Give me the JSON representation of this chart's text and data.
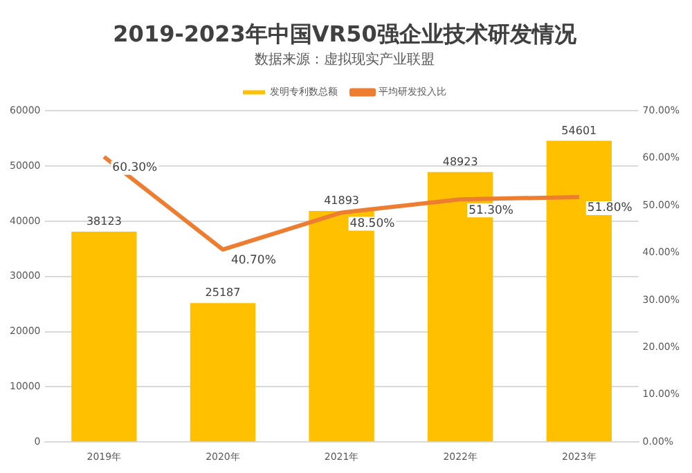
{
  "chart_data": {
    "type": "bar",
    "title": "2019-2023年中国VR50强企业技术研发情况",
    "annotations": [
      "数据来源：虚拟现实产业联盟"
    ],
    "categories": [
      "2019年",
      "2020年",
      "2021年",
      "2022年",
      "2023年"
    ],
    "series": [
      {
        "name": "发明专利数总额",
        "color": "#ffc000",
        "values": [
          38123,
          25187,
          41893,
          48923,
          54601
        ],
        "value_labels": [
          "38123",
          "25187",
          "41893",
          "48923",
          "54601"
        ]
      },
      {
        "name": "平均研发投入比",
        "type": "line",
        "axis": "y2",
        "color": "#ed7d31",
        "values": [
          60.3,
          40.7,
          48.5,
          51.3,
          51.8
        ],
        "value_labels": [
          "60.30%",
          "40.70%",
          "48.50%",
          "51.30%",
          "51.80%"
        ]
      }
    ],
    "ylim": [
      0,
      60000
    ],
    "yticks": [
      0,
      10000,
      20000,
      30000,
      40000,
      50000,
      60000
    ],
    "y2lim": [
      0,
      70
    ],
    "y2ticks": [
      {
        "value": 0,
        "label": "0.00%"
      },
      {
        "value": 10,
        "label": "10.00%"
      },
      {
        "value": 20,
        "label": "20.00%"
      },
      {
        "value": 30,
        "label": "30.00%"
      },
      {
        "value": 40,
        "label": "40.00%"
      },
      {
        "value": 50,
        "label": "50.00%"
      },
      {
        "value": 60,
        "label": "60.00%"
      },
      {
        "value": 70,
        "label": "70.00%"
      }
    ],
    "grid": "y",
    "legend": "top",
    "marker": "none"
  }
}
